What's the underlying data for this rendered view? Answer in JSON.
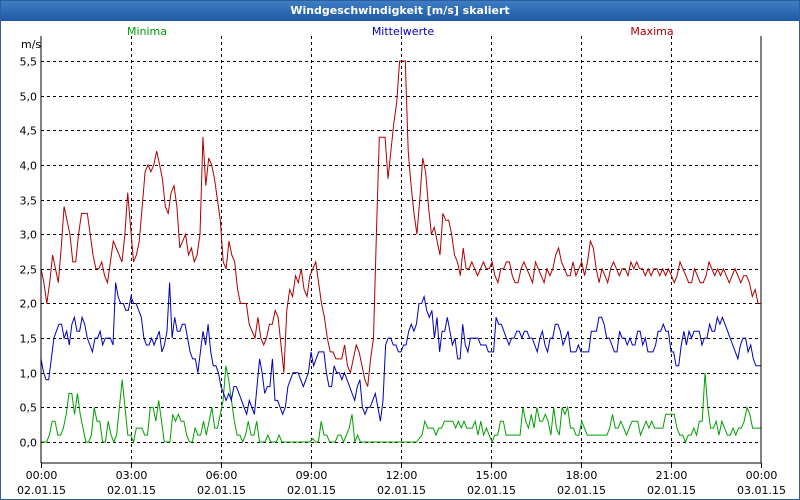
{
  "window": {
    "title": "Windgeschwindigkeit [m/s] skaliert"
  },
  "chart_data": {
    "type": "line",
    "title": "Windgeschwindigkeit [m/s] skaliert",
    "ylabel": "m/s",
    "ylim": [
      0,
      5.5
    ],
    "yticks": [
      0,
      0.5,
      1.0,
      1.5,
      2.0,
      2.5,
      3.0,
      3.5,
      4.0,
      4.5,
      5.0,
      5.5
    ],
    "ytick_labels": [
      "0,0",
      "0,5",
      "1,0",
      "1,5",
      "2,0",
      "2,5",
      "3,0",
      "3,5",
      "4,0",
      "4,5",
      "5,0",
      "5,5"
    ],
    "xlim_hours": [
      0,
      24
    ],
    "xticks_hours": [
      0,
      3,
      6,
      9,
      12,
      15,
      18,
      21,
      24
    ],
    "xtick_labels": [
      {
        "time": "00:00",
        "date": "02.01.15"
      },
      {
        "time": "03:00",
        "date": "02.01.15"
      },
      {
        "time": "06:00",
        "date": "02.01.15"
      },
      {
        "time": "09:00",
        "date": "02.01.15"
      },
      {
        "time": "12:00",
        "date": "02.01.15"
      },
      {
        "time": "15:00",
        "date": "02.01.15"
      },
      {
        "time": "18:00",
        "date": "02.01.15"
      },
      {
        "time": "21:00",
        "date": "02.01.15"
      },
      {
        "time": "00:00",
        "date": "03.01.15"
      }
    ],
    "grid": true,
    "sample_interval_hours": 0.1667,
    "series": [
      {
        "name": "Minima",
        "color": "#00a000",
        "values": [
          0,
          0,
          0,
          0.1,
          0.3,
          0.3,
          0.1,
          0.1,
          0.2,
          0.4,
          0.7,
          0.7,
          0.4,
          0.7,
          0.4,
          0.2,
          0,
          0,
          0.1,
          0.5,
          0.3,
          0.3,
          0,
          0,
          0.3,
          0.1,
          0,
          0.1,
          0.5,
          0.9,
          0.5,
          0.1,
          0.1,
          0,
          0.2,
          0.2,
          0.2,
          0.1,
          0.1,
          0.5,
          0.5,
          0.3,
          0.6,
          0.3,
          0,
          0,
          0,
          0.4,
          0.3,
          0.4,
          0.3,
          0.3,
          0.1,
          0,
          0,
          0.2,
          0.1,
          0.1,
          0.3,
          0.1,
          0.3,
          0.5,
          0.2,
          0.2,
          0.4,
          0.6,
          1.1,
          0.9,
          0.6,
          0.3,
          0.1,
          0.1,
          0,
          0.1,
          0.3,
          0.1,
          0.1,
          0.3,
          0,
          0,
          0,
          0.1,
          0,
          0,
          0,
          0.1,
          0,
          0,
          0,
          0,
          0,
          0,
          0,
          0,
          0,
          0,
          0,
          0.05,
          0,
          0,
          0.3,
          0.1,
          0.1,
          0,
          0,
          0,
          0.1,
          0.1,
          0,
          0.1,
          0.2,
          0.4,
          0,
          0.1,
          0,
          0,
          0,
          0,
          0,
          0,
          0,
          0,
          0,
          0,
          0,
          0,
          0,
          0,
          0,
          0,
          0,
          0,
          0,
          0,
          0,
          0.05,
          0.1,
          0.3,
          0.2,
          0.2,
          0.2,
          0.1,
          0.2,
          0.2,
          0.3,
          0.3,
          0.3,
          0.3,
          0.2,
          0.3,
          0.2,
          0.3,
          0.2,
          0.2,
          0.2,
          0.3,
          0.1,
          0.3,
          0.1,
          0.2,
          0.1,
          0,
          0.1,
          0.1,
          0.3,
          0.3,
          0.1,
          0.1,
          0.1,
          0.1,
          0.1,
          0.1,
          0.5,
          0.3,
          0.2,
          0.4,
          0.2,
          0.5,
          0.3,
          0.3,
          0.4,
          0.3,
          0.1,
          0.5,
          0.2,
          0.1,
          0.5,
          0.4,
          0.5,
          0.2,
          0.2,
          0.1,
          0.1,
          0.3,
          0.2,
          0.1,
          0.1,
          0.1,
          0.1,
          0.1,
          0.1,
          0.1,
          0.1,
          0.2,
          0.4,
          0.2,
          0.2,
          0.3,
          0.2,
          0.1,
          0.2,
          0.3,
          0.3,
          0.3,
          0.1,
          0.2,
          0.3,
          0.2,
          0.3,
          0.2,
          0.2,
          0.2,
          0.2,
          0.4,
          0.4,
          0.4,
          0.4,
          0.2,
          0.1,
          0.1,
          0,
          0.1,
          0.1,
          0.2,
          0.1,
          0.3,
          0.3,
          1.0,
          0.5,
          0.2,
          0.2,
          0.3,
          0.1,
          0.3,
          0.2,
          0.1,
          0.1,
          0.2,
          0.1,
          0.2,
          0.2,
          0.3,
          0.5,
          0.4,
          0.2,
          0.2,
          0.2,
          0.2
        ]
      },
      {
        "name": "Mittelwerte",
        "color": "#0000c0",
        "values": [
          1.2,
          1.0,
          0.9,
          0.9,
          1.2,
          1.5,
          1.6,
          1.7,
          1.7,
          1.5,
          1.6,
          1.4,
          1.7,
          1.8,
          1.6,
          1.6,
          1.8,
          1.7,
          1.5,
          1.4,
          1.3,
          1.5,
          1.5,
          1.6,
          1.4,
          1.5,
          1.5,
          1.5,
          1.4,
          2.3,
          2.1,
          2.0,
          2.0,
          1.9,
          1.9,
          2.1,
          2.0,
          2.0,
          1.9,
          1.8,
          1.5,
          1.4,
          1.4,
          1.5,
          1.4,
          1.5,
          1.6,
          1.3,
          1.4,
          1.6,
          2.3,
          1.5,
          1.8,
          1.6,
          1.6,
          1.7,
          1.7,
          1.5,
          1.3,
          1.2,
          1.2,
          1.0,
          1.3,
          1.6,
          1.4,
          1.7,
          1.3,
          1.1,
          1.1,
          1.0,
          0.8,
          0.7,
          0.6,
          0.7,
          0.6,
          0.8,
          0.8,
          0.7,
          0.6,
          0.5,
          0.4,
          0.6,
          0.5,
          0.4,
          0.8,
          1.2,
          1.0,
          0.7,
          0.8,
          0.8,
          1.2,
          0.6,
          0.6,
          0.5,
          0.4,
          0.5,
          0.8,
          0.9,
          1.0,
          1.0,
          1.0,
          0.9,
          0.8,
          0.9,
          1.0,
          1.3,
          1.1,
          1.2,
          1.3,
          1.3,
          1.3,
          1.0,
          0.8,
          0.8,
          1.1,
          1.0,
          1.0,
          0.9,
          1.0,
          0.9,
          0.8,
          0.7,
          0.6,
          0.8,
          0.9,
          0.5,
          0.4,
          0.5,
          0.5,
          0.6,
          0.7,
          0.5,
          0.3,
          0.6,
          1.4,
          1.5,
          1.5,
          1.4,
          1.4,
          1.3,
          1.3,
          1.4,
          1.4,
          1.6,
          1.7,
          1.6,
          1.7,
          2.0,
          2.0,
          2.1,
          1.9,
          1.8,
          1.9,
          1.5,
          1.8,
          1.3,
          1.6,
          1.6,
          1.8,
          1.6,
          1.4,
          1.5,
          1.2,
          1.2,
          1.7,
          1.4,
          1.3,
          1.5,
          1.5,
          1.5,
          1.5,
          1.4,
          1.4,
          1.4,
          1.3,
          1.3,
          1.3,
          1.8,
          1.7,
          1.7,
          1.6,
          1.5,
          1.4,
          1.5,
          1.5,
          1.6,
          1.6,
          1.5,
          1.6,
          1.6,
          1.5,
          1.5,
          1.4,
          1.3,
          1.5,
          1.6,
          1.4,
          1.3,
          1.5,
          1.5,
          1.7,
          1.7,
          1.6,
          1.4,
          1.5,
          1.6,
          1.3,
          1.3,
          1.3,
          1.4,
          1.3,
          1.3,
          1.3,
          1.3,
          1.6,
          1.6,
          1.6,
          1.8,
          1.8,
          1.7,
          1.5,
          1.5,
          1.4,
          1.3,
          1.3,
          1.6,
          1.5,
          1.5,
          1.4,
          1.5,
          1.4,
          1.4,
          1.6,
          1.6,
          1.4,
          1.5,
          1.3,
          1.3,
          1.3,
          1.4,
          1.6,
          1.6,
          1.7,
          1.6,
          1.6,
          1.3,
          1.3,
          1.1,
          1.1,
          1.4,
          1.6,
          1.4,
          1.6,
          1.5,
          1.6,
          1.6,
          1.6,
          1.4,
          1.5,
          1.5,
          1.7,
          1.6,
          1.6,
          1.8,
          1.7,
          1.8,
          1.7,
          1.6,
          1.5,
          1.4,
          1.3,
          1.2,
          1.4,
          1.5,
          1.5,
          1.3,
          1.4,
          1.2,
          1.1,
          1.1,
          1.1
        ]
      },
      {
        "name": "Maxima",
        "color": "#b00000",
        "values": [
          2.5,
          2.3,
          2.0,
          2.3,
          2.7,
          2.5,
          2.3,
          2.8,
          3.4,
          3.2,
          3.0,
          2.6,
          2.6,
          3.0,
          3.3,
          3.3,
          3.3,
          3.0,
          2.7,
          2.5,
          2.5,
          2.6,
          2.4,
          2.3,
          2.6,
          2.9,
          2.8,
          2.7,
          2.6,
          3.0,
          3.6,
          3.1,
          2.6,
          2.7,
          2.9,
          3.4,
          3.9,
          4.0,
          3.9,
          4.0,
          4.2,
          4.0,
          3.8,
          3.4,
          3.3,
          3.6,
          3.7,
          3.4,
          2.8,
          2.9,
          3.0,
          2.7,
          2.8,
          2.6,
          2.7,
          3.0,
          4.4,
          3.7,
          4.1,
          4.0,
          3.8,
          3.5,
          3.2,
          2.6,
          2.5,
          2.9,
          2.7,
          2.6,
          2.2,
          2.0,
          2.0,
          2.0,
          1.7,
          1.6,
          1.5,
          1.8,
          1.5,
          1.4,
          1.5,
          1.7,
          1.7,
          1.9,
          1.8,
          1.4,
          1.0,
          1.9,
          2.2,
          2.1,
          2.4,
          2.3,
          2.5,
          2.2,
          2.1,
          2.4,
          2.5,
          2.6,
          2.3,
          2.0,
          1.8,
          1.5,
          1.3,
          1.3,
          1.2,
          1.2,
          1.2,
          1.4,
          1.1,
          1.0,
          1.2,
          1.4,
          1.3,
          1.1,
          0.9,
          0.8,
          1.2,
          1.5,
          3.0,
          4.4,
          4.4,
          4.4,
          3.8,
          4.2,
          4.6,
          4.9,
          5.5,
          5.5,
          5.5,
          4.2,
          3.7,
          3.3,
          3.0,
          3.5,
          4.1,
          3.9,
          3.4,
          3.0,
          3.1,
          2.9,
          2.7,
          3.3,
          3.2,
          3.2,
          3.0,
          2.7,
          2.6,
          2.4,
          2.8,
          2.5,
          2.5,
          2.6,
          2.5,
          2.4,
          2.5,
          2.6,
          2.5,
          2.5,
          2.6,
          2.4,
          2.3,
          2.5,
          2.5,
          2.6,
          2.6,
          2.4,
          2.3,
          2.3,
          2.5,
          2.6,
          2.5,
          2.4,
          2.3,
          2.6,
          2.5,
          2.4,
          2.3,
          2.5,
          2.4,
          2.5,
          2.7,
          2.8,
          2.6,
          2.5,
          2.4,
          2.4,
          2.6,
          2.4,
          2.5,
          2.6,
          2.4,
          2.6,
          2.9,
          2.8,
          2.5,
          2.3,
          2.5,
          2.4,
          2.3,
          2.5,
          2.6,
          2.5,
          2.4,
          2.5,
          2.5,
          2.4,
          2.6,
          2.5,
          2.6,
          2.5,
          2.5,
          2.4,
          2.5,
          2.4,
          2.5,
          2.5,
          2.4,
          2.5,
          2.4,
          2.5,
          2.4,
          2.3,
          2.4,
          2.6,
          2.5,
          2.4,
          2.3,
          2.3,
          2.5,
          2.4,
          2.3,
          2.3,
          2.4,
          2.6,
          2.5,
          2.4,
          2.5,
          2.4,
          2.5,
          2.4,
          2.3,
          2.4,
          2.5,
          2.4,
          2.3,
          2.4,
          2.4,
          2.3,
          2.1,
          2.2,
          2.0,
          2.0
        ]
      }
    ]
  }
}
